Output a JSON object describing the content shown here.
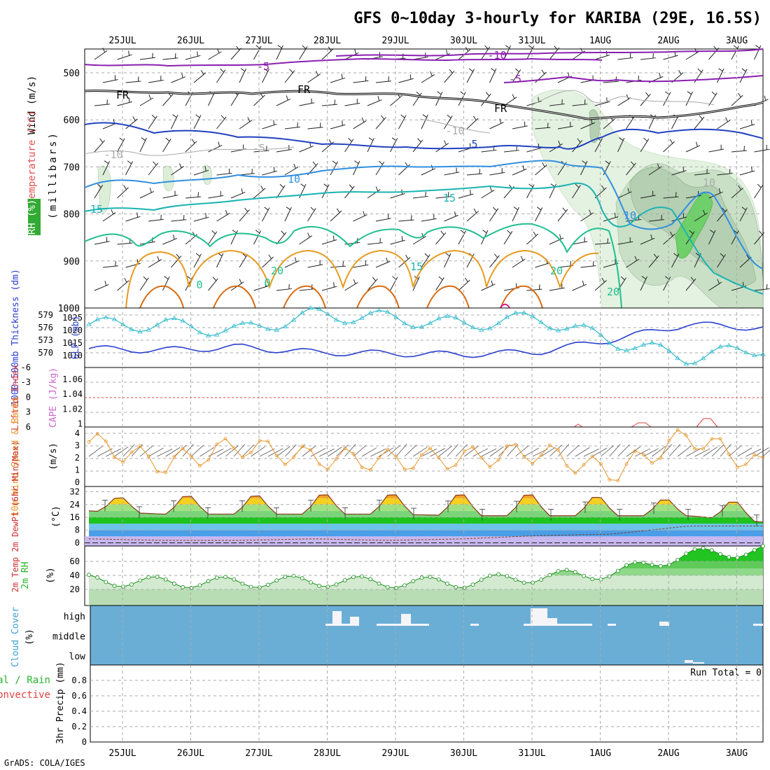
{
  "page": {
    "title": "GFS 0~10day 3-hourly for KARIBA (29E, 16.5S)",
    "credit": "GrADS: COLA/IGES",
    "dates": [
      "25JUL",
      "26JUL",
      "27JUL",
      "28JUL",
      "29JUL",
      "30JUL",
      "31JUL",
      "1AUG",
      "2AUG",
      "3AUG"
    ]
  },
  "colors": {
    "frame": "#000000",
    "grid": "#aaaaaa",
    "purple": "#8a1fb0",
    "blue_dark": "#2040c0",
    "blue_mid": "#2f8fe0",
    "cyan": "#1ab3b3",
    "green_teal": "#1fbf8f",
    "orange": "#e89a20",
    "orange_dark": "#d86a10",
    "thickness": "#2a3fcf",
    "slp": "#33bbcc",
    "wind_speed": "#e8962a",
    "precip_green": "#2ab32a",
    "cloud_bg": "#6aaed6",
    "lifted_index": "#e04040",
    "cape_label": "#cc66cc",
    "rh_fill": "#c6e6c0"
  },
  "panels": {
    "upper": {
      "label_wind": "Wind (m/s)",
      "label_temp": "Temperature (°C)",
      "label_rh": "RH (%)",
      "label_unit": "(millibars)",
      "levels": [
        "500",
        "600",
        "700",
        "800",
        "900",
        "1000"
      ],
      "contour_labels": [
        "-10",
        "-5",
        "-5",
        "FR",
        "FR",
        "FR",
        "-10",
        "-10",
        "-5",
        "5",
        "10",
        "10",
        "15",
        "15",
        "10",
        "20",
        "20",
        "0",
        "0",
        "20",
        "15"
      ]
    },
    "thickness": {
      "label_left": "1000~500mb Thickness (dm)",
      "label_right": "SLP (mb)",
      "left_ticks": [
        "579",
        "576",
        "573",
        "570"
      ],
      "right_ticks": [
        "1025",
        "1020",
        "1015",
        "1010"
      ]
    },
    "cape": {
      "label_left": "Lifted Index",
      "label_right": "CAPE (J/kg)",
      "left_ticks": [
        "-6",
        "-3",
        "0",
        "3",
        "6"
      ],
      "right_ticks": [
        "1.06",
        "1.04",
        "1.02",
        "1"
      ]
    },
    "wind10m": {
      "label": "10m Wind Speed & Barbs",
      "unit": "(m/s)",
      "ticks": [
        "4",
        "3",
        "2",
        "1",
        "0"
      ]
    },
    "temp2m": {
      "label": "2m Temp 2m DewPt (6hr Min/Max)",
      "unit": "(°C)",
      "ticks": [
        "32",
        "24",
        "16",
        "8",
        "0"
      ]
    },
    "rh2m": {
      "label": "2m RH",
      "unit": "(%)",
      "ticks": [
        "60",
        "40",
        "20"
      ]
    },
    "cloud": {
      "label": "Cloud Cover",
      "unit": "(%)",
      "levels": [
        "high",
        "middle",
        "low"
      ]
    },
    "precip": {
      "label": "3hr Precip (mm)",
      "legend_total": "Total / Rain",
      "legend_convective": "Convective",
      "run_total": "Run Total = 0",
      "ticks": [
        "0.8",
        "0.6",
        "0.4",
        "0.2",
        "0"
      ]
    }
  },
  "chart_data": [
    {
      "type": "line",
      "title": "1000~500mb Thickness (dm) / SLP (mb)",
      "x": [
        "25JUL",
        "26JUL",
        "27JUL",
        "28JUL",
        "29JUL",
        "30JUL",
        "31JUL",
        "1AUG",
        "2AUG",
        "3AUG"
      ],
      "series": [
        {
          "name": "1000~500mb Thickness (dm)",
          "values": [
            572.5,
            572.2,
            572.8,
            571.8,
            571.6,
            571.4,
            571.9,
            574.2,
            577.0,
            576.3
          ]
        },
        {
          "name": "SLP (mb)",
          "values": [
            1022,
            1022,
            1020,
            1025,
            1024,
            1022,
            1024,
            1017,
            1012,
            1015
          ]
        }
      ],
      "ylim_left": [
        569,
        580
      ],
      "ylim_right": [
        1009,
        1027
      ]
    },
    {
      "type": "line",
      "title": "Lifted Index / CAPE (J/kg)",
      "x": [
        "1AUG",
        "2AUG"
      ],
      "series": [
        {
          "name": "CAPE (J/kg)",
          "values": [
            1.0,
            1.01
          ]
        }
      ],
      "ylim_left": [
        -6,
        6
      ],
      "ylim_right": [
        1.0,
        1.06
      ]
    },
    {
      "type": "line",
      "title": "10m Wind Speed & Barbs (m/s)",
      "x": [
        "25JUL",
        "26JUL",
        "27JUL",
        "28JUL",
        "29JUL",
        "30JUL",
        "31JUL",
        "1AUG",
        "2AUG",
        "3AUG"
      ],
      "series": [
        {
          "name": "Speed",
          "values": [
            3.3,
            1.5,
            3.0,
            2.0,
            1.8,
            2.0,
            2.5,
            0.8,
            3.8,
            1.3
          ]
        }
      ],
      "ylim": [
        0,
        4
      ]
    },
    {
      "type": "area",
      "title": "2m Temp 2m DewPt (6hr Min/Max) (°C)",
      "x": [
        "25JUL",
        "26JUL",
        "27JUL",
        "28JUL",
        "29JUL",
        "30JUL",
        "31JUL",
        "1AUG",
        "2AUG",
        "3AUG"
      ],
      "series": [
        {
          "name": "2m Temp max",
          "values": [
            28,
            30,
            30,
            31,
            31,
            31,
            31,
            29,
            27,
            26
          ]
        },
        {
          "name": "2m Temp min",
          "values": [
            20,
            18,
            18,
            18,
            18,
            17,
            17,
            17,
            17,
            13
          ]
        },
        {
          "name": "2m DewPt",
          "values": [
            0,
            -1,
            -1,
            0,
            -1,
            0,
            2,
            3,
            8,
            8
          ]
        }
      ],
      "ylim": [
        -2,
        34
      ]
    },
    {
      "type": "area",
      "title": "2m RH (%)",
      "x": [
        "25JUL",
        "26JUL",
        "27JUL",
        "28JUL",
        "29JUL",
        "30JUL",
        "31JUL",
        "1AUG",
        "2AUG",
        "3AUG"
      ],
      "series": [
        {
          "name": "2m RH",
          "values": [
            33,
            30,
            30,
            32,
            30,
            30,
            38,
            43,
            70,
            75
          ]
        }
      ],
      "ylim": [
        0,
        80
      ]
    },
    {
      "type": "bar",
      "title": "3hr Precip (mm)",
      "x": [
        "25JUL",
        "26JUL",
        "27JUL",
        "28JUL",
        "29JUL",
        "30JUL",
        "31JUL",
        "1AUG",
        "2AUG",
        "3AUG"
      ],
      "series": [
        {
          "name": "Total / Rain",
          "values": [
            0,
            0,
            0,
            0,
            0,
            0,
            0,
            0,
            0,
            0
          ]
        }
      ],
      "ylim": [
        0,
        1
      ]
    }
  ]
}
